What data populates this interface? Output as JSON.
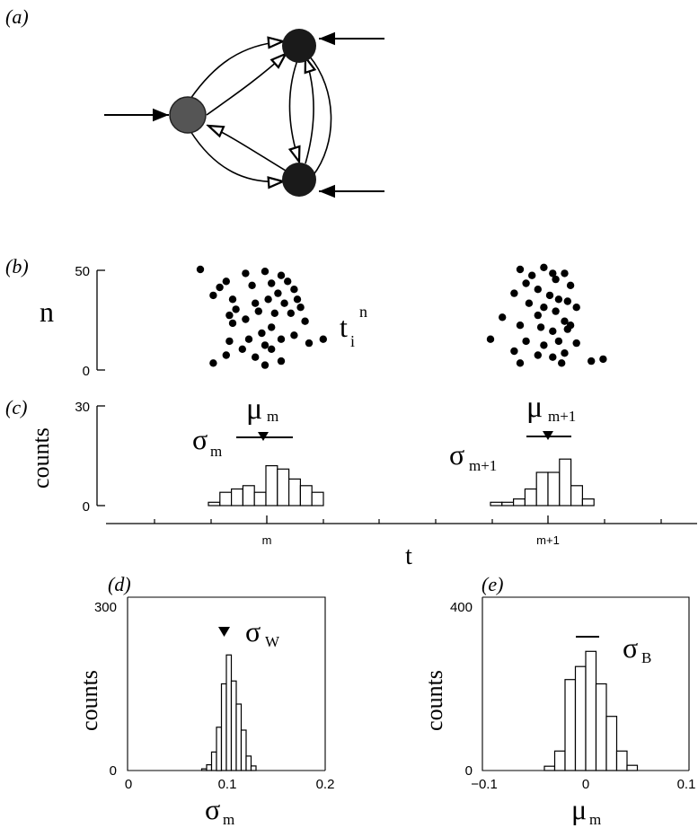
{
  "panels": {
    "a": {
      "label": "(a)"
    },
    "b": {
      "label": "(b)",
      "ylabel": "n",
      "ticks": [
        "50",
        "0"
      ],
      "annotation": {
        "base": "t",
        "sub": "i",
        "sup": "n"
      }
    },
    "c": {
      "label": "(c)",
      "ylabel": "counts",
      "ticks": [
        "30",
        "0"
      ],
      "xlabel": "t",
      "xticks": [
        "m",
        "m+1"
      ],
      "mu_left": {
        "base": "μ",
        "sub": "m"
      },
      "sigma_left": {
        "base": "σ",
        "sub": "m"
      },
      "mu_right": {
        "base": "μ",
        "sub": "m+1"
      },
      "sigma_right": {
        "base": "σ",
        "sub": "m+1"
      }
    },
    "d": {
      "label": "(d)",
      "ylabel": "counts",
      "yticks": [
        "300",
        "0"
      ],
      "xticks": [
        "0",
        "0.1",
        "0.2"
      ],
      "xlabel": {
        "base": "σ",
        "sub": "m"
      },
      "marker": {
        "base": "σ",
        "sub": "W"
      }
    },
    "e": {
      "label": "(e)",
      "ylabel": "counts",
      "yticks": [
        "400",
        "0"
      ],
      "xticks": [
        "−0.1",
        "0",
        "0.1"
      ],
      "xlabel": {
        "base": "μ",
        "sub": "m"
      },
      "marker": {
        "base": "σ",
        "sub": "B"
      }
    }
  },
  "chart_data": [
    {
      "type": "scatter",
      "panel": "b-left",
      "ylim": [
        0,
        50
      ],
      "points": [
        [
          -1.0,
          50
        ],
        [
          -0.6,
          44
        ],
        [
          -0.7,
          41
        ],
        [
          -0.8,
          37
        ],
        [
          -0.3,
          48
        ],
        [
          -0.5,
          35
        ],
        [
          -0.2,
          42
        ],
        [
          0.0,
          49
        ],
        [
          0.1,
          43
        ],
        [
          0.25,
          47
        ],
        [
          0.35,
          44
        ],
        [
          0.45,
          40
        ],
        [
          0.5,
          35
        ],
        [
          0.2,
          38
        ],
        [
          -0.45,
          30
        ],
        [
          -0.55,
          27
        ],
        [
          -0.15,
          33
        ],
        [
          0.05,
          35
        ],
        [
          0.3,
          33
        ],
        [
          0.55,
          31
        ],
        [
          0.62,
          24
        ],
        [
          -0.5,
          23
        ],
        [
          -0.3,
          25
        ],
        [
          -0.1,
          29
        ],
        [
          0.15,
          28
        ],
        [
          0.4,
          28
        ],
        [
          -0.05,
          18
        ],
        [
          -0.25,
          15
        ],
        [
          -0.55,
          14
        ],
        [
          0.0,
          12
        ],
        [
          0.25,
          15
        ],
        [
          0.1,
          21
        ],
        [
          0.45,
          17
        ],
        [
          0.68,
          13
        ],
        [
          -0.6,
          7
        ],
        [
          -0.8,
          3
        ],
        [
          -0.35,
          10
        ],
        [
          0.1,
          10
        ],
        [
          0.25,
          4
        ],
        [
          -0.15,
          6
        ],
        [
          0.0,
          2
        ],
        [
          0.9,
          15
        ]
      ]
    },
    {
      "type": "scatter",
      "panel": "b-right",
      "ylim": [
        0,
        50
      ],
      "points": [
        [
          -0.5,
          50
        ],
        [
          -0.3,
          47
        ],
        [
          -0.1,
          51
        ],
        [
          0.05,
          48
        ],
        [
          0.25,
          48
        ],
        [
          -0.4,
          43
        ],
        [
          -0.2,
          40
        ],
        [
          0.1,
          45
        ],
        [
          0.35,
          42
        ],
        [
          -0.6,
          38
        ],
        [
          0.0,
          37
        ],
        [
          0.15,
          35
        ],
        [
          0.3,
          34
        ],
        [
          0.45,
          31
        ],
        [
          -0.1,
          31
        ],
        [
          -0.35,
          33
        ],
        [
          -0.8,
          26
        ],
        [
          -0.2,
          27
        ],
        [
          0.1,
          29
        ],
        [
          0.25,
          24
        ],
        [
          0.35,
          22
        ],
        [
          -0.5,
          22
        ],
        [
          -0.15,
          21
        ],
        [
          0.05,
          19
        ],
        [
          0.3,
          20
        ],
        [
          -1.0,
          15
        ],
        [
          -0.4,
          14
        ],
        [
          -0.1,
          12
        ],
        [
          0.15,
          14
        ],
        [
          0.45,
          13
        ],
        [
          -0.6,
          9
        ],
        [
          -0.2,
          7
        ],
        [
          0.05,
          6
        ],
        [
          0.25,
          8
        ],
        [
          -0.5,
          3
        ],
        [
          0.2,
          3
        ],
        [
          0.7,
          4
        ],
        [
          0.9,
          5
        ]
      ]
    },
    {
      "type": "bar",
      "panel": "c-left",
      "bin_edges": [
        -1.0,
        -0.85,
        -0.7,
        -0.55,
        -0.4,
        -0.25,
        -0.1,
        0.05,
        0.2,
        0.35,
        0.5
      ],
      "values": [
        1,
        4,
        5,
        6,
        4,
        12,
        11,
        8,
        6,
        4
      ],
      "ylim": [
        0,
        30
      ],
      "mu": 0.0,
      "sigma": 0.3
    },
    {
      "type": "bar",
      "panel": "c-right",
      "bin_edges": [
        -1.0,
        -0.85,
        -0.7,
        -0.55,
        -0.4,
        -0.25,
        -0.1,
        0.05,
        0.2,
        0.35,
        0.5
      ],
      "values": [
        1,
        1,
        2,
        5,
        10,
        10,
        14,
        6,
        2,
        0
      ],
      "ylim": [
        0,
        30
      ],
      "mu": -0.05,
      "sigma": 0.22
    },
    {
      "type": "bar",
      "panel": "d",
      "bin_edges": [
        0.075,
        0.08,
        0.085,
        0.09,
        0.095,
        0.1,
        0.105,
        0.11,
        0.115,
        0.12,
        0.125,
        0.13
      ],
      "values": [
        3,
        10,
        32,
        75,
        150,
        200,
        155,
        115,
        70,
        25,
        8
      ],
      "xlim": [
        0,
        0.2
      ],
      "ylim": [
        0,
        300
      ],
      "marker_x": 0.1
    },
    {
      "type": "bar",
      "panel": "e",
      "bin_edges": [
        -0.04,
        -0.03,
        -0.02,
        -0.01,
        0.0,
        0.01,
        0.02,
        0.03,
        0.04,
        0.05
      ],
      "values": [
        10,
        45,
        210,
        240,
        275,
        200,
        125,
        45,
        12
      ],
      "xlim": [
        -0.1,
        0.1
      ],
      "ylim": [
        0,
        400
      ],
      "sigma_B": 0.025
    }
  ]
}
